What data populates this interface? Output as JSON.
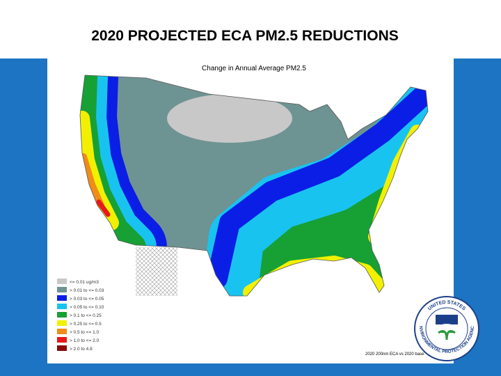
{
  "header": {
    "title": "2020 PROJECTED ECA PM2.5 REDUCTIONS"
  },
  "map": {
    "title": "Change in Annual Average PM2.5",
    "legend": [
      {
        "label": "<= 0.01 ug/m3",
        "color": "#c8c8c8"
      },
      {
        "label": "> 0.01 to <= 0.03",
        "color": "#6e9393"
      },
      {
        "label": "> 0.03 to <= 0.05",
        "color": "#0a1ee6"
      },
      {
        "label": "> 0.05 to <= 0.10",
        "color": "#19c3f0"
      },
      {
        "label": "> 0.1 to <= 0.25",
        "color": "#17a034"
      },
      {
        "label": "> 0.25 to <= 0.5",
        "color": "#f2f000"
      },
      {
        "label": "> 0.5 to <= 1.0",
        "color": "#f08c19"
      },
      {
        "label": "> 1.0 to <= 2.0",
        "color": "#e61919"
      },
      {
        "label": "> 2.0 to 4.8",
        "color": "#8c0a0a"
      }
    ],
    "footnote": "2020 200nm ECA vs 2020 base"
  },
  "logo": {
    "top": "UNITED STATES",
    "bottom": "ENVIRONMENTAL PROTECTION AGENCY"
  }
}
